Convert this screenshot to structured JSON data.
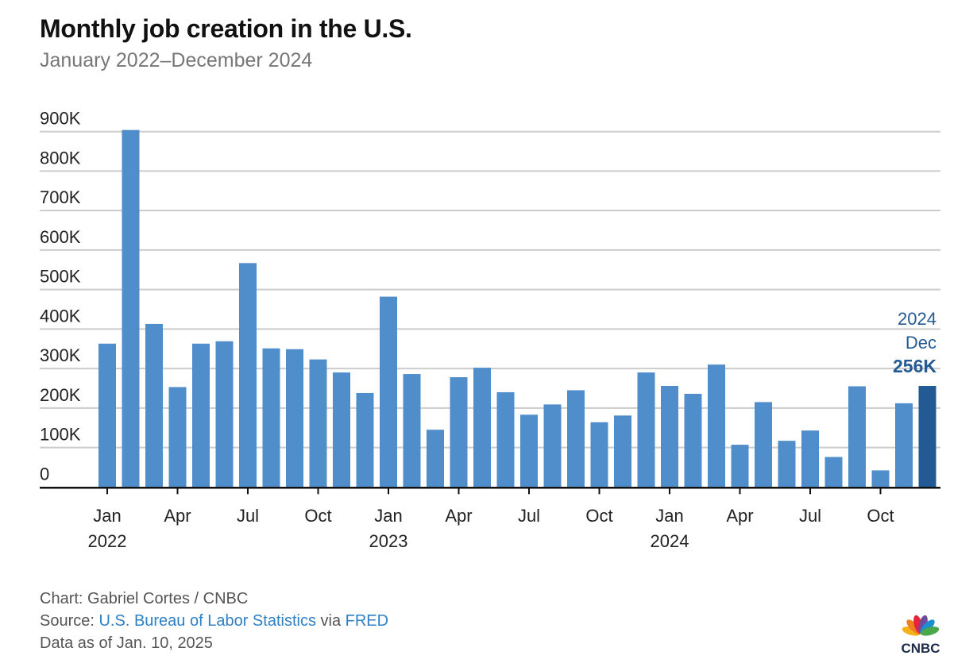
{
  "header": {
    "title": "Monthly job creation in the U.S.",
    "subtitle": "January 2022–December 2024"
  },
  "chart_data": {
    "type": "bar",
    "title": "Monthly job creation in the U.S.",
    "subtitle": "January 2022–December 2024",
    "xlabel": "",
    "ylabel": "",
    "ylim": [
      0,
      900000
    ],
    "grid": true,
    "yticks": [
      0,
      100000,
      200000,
      300000,
      400000,
      500000,
      600000,
      700000,
      800000,
      900000
    ],
    "ytick_labels": [
      "0",
      "100K",
      "200K",
      "300K",
      "400K",
      "500K",
      "600K",
      "700K",
      "800K",
      "900K"
    ],
    "categories": [
      "2022-01",
      "2022-02",
      "2022-03",
      "2022-04",
      "2022-05",
      "2022-06",
      "2022-07",
      "2022-08",
      "2022-09",
      "2022-10",
      "2022-11",
      "2022-12",
      "2023-01",
      "2023-02",
      "2023-03",
      "2023-04",
      "2023-05",
      "2023-06",
      "2023-07",
      "2023-08",
      "2023-09",
      "2023-10",
      "2023-11",
      "2023-12",
      "2024-01",
      "2024-02",
      "2024-03",
      "2024-04",
      "2024-05",
      "2024-06",
      "2024-07",
      "2024-08",
      "2024-09",
      "2024-10",
      "2024-11",
      "2024-12"
    ],
    "values": [
      363000,
      904000,
      413000,
      253000,
      363000,
      369000,
      567000,
      351000,
      349000,
      323000,
      290000,
      238000,
      482000,
      286000,
      145000,
      278000,
      302000,
      240000,
      183000,
      209000,
      245000,
      164000,
      181000,
      290000,
      256000,
      236000,
      310000,
      107000,
      215000,
      117000,
      143000,
      76000,
      255000,
      42000,
      212000,
      256000
    ],
    "xticks": [
      {
        "index": 0,
        "label": "Jan",
        "year": "2022"
      },
      {
        "index": 3,
        "label": "Apr",
        "year": ""
      },
      {
        "index": 6,
        "label": "Jul",
        "year": ""
      },
      {
        "index": 9,
        "label": "Oct",
        "year": ""
      },
      {
        "index": 12,
        "label": "Jan",
        "year": "2023"
      },
      {
        "index": 15,
        "label": "Apr",
        "year": ""
      },
      {
        "index": 18,
        "label": "Jul",
        "year": ""
      },
      {
        "index": 21,
        "label": "Oct",
        "year": ""
      },
      {
        "index": 24,
        "label": "Jan",
        "year": "2024"
      },
      {
        "index": 27,
        "label": "Apr",
        "year": ""
      },
      {
        "index": 30,
        "label": "Jul",
        "year": ""
      },
      {
        "index": 33,
        "label": "Oct",
        "year": ""
      }
    ],
    "highlight": {
      "index": 35,
      "year": "2024",
      "month": "Dec",
      "value_label": "256K"
    },
    "colors": {
      "bar": "#508dcb",
      "highlight": "#245a94",
      "grid": "#cccccc",
      "axis": "#111111",
      "label": "#222222"
    }
  },
  "footer": {
    "credit": "Chart: Gabriel Cortes / CNBC",
    "source_prefix": "Source: ",
    "source_link": "U.S. Bureau of Labor Statistics",
    "source_via": " via ",
    "source_link2": "FRED",
    "data_as_of": "Data as of Jan. 10, 2025"
  },
  "logo": {
    "text": "CNBC",
    "icon": "peacock-icon"
  }
}
